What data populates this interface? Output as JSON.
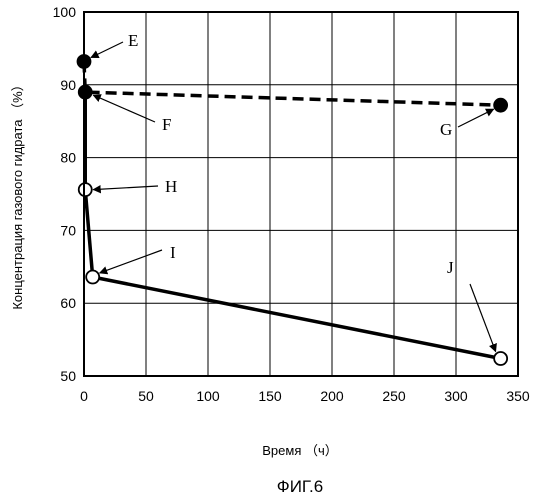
{
  "chart_data": {
    "type": "line",
    "ylabel": "Концентрация газового гидрата （%）",
    "xlabel": "Время （ч）",
    "caption": "ФИГ.6",
    "xlim": [
      0,
      350
    ],
    "ylim": [
      50,
      100
    ],
    "xticks": [
      0,
      50,
      100,
      150,
      200,
      250,
      300,
      350
    ],
    "yticks": [
      50,
      60,
      70,
      80,
      90,
      100
    ],
    "grid": true,
    "series": [
      {
        "style": "dashed",
        "marker": "filled-circle",
        "color": "#000000",
        "points": [
          {
            "x": 0,
            "y": 93.2,
            "label": "E"
          },
          {
            "x": 1,
            "y": 89.0,
            "label": "F"
          },
          {
            "x": 336,
            "y": 87.2,
            "label": "G"
          }
        ]
      },
      {
        "style": "solid",
        "marker": "open-circle",
        "color": "#000000",
        "points": [
          {
            "x": 1,
            "y": 89.0,
            "label": ""
          },
          {
            "x": 1,
            "y": 75.6,
            "label": "H"
          },
          {
            "x": 7,
            "y": 63.6,
            "label": "I"
          },
          {
            "x": 336,
            "y": 52.4,
            "label": "J"
          }
        ]
      }
    ]
  }
}
